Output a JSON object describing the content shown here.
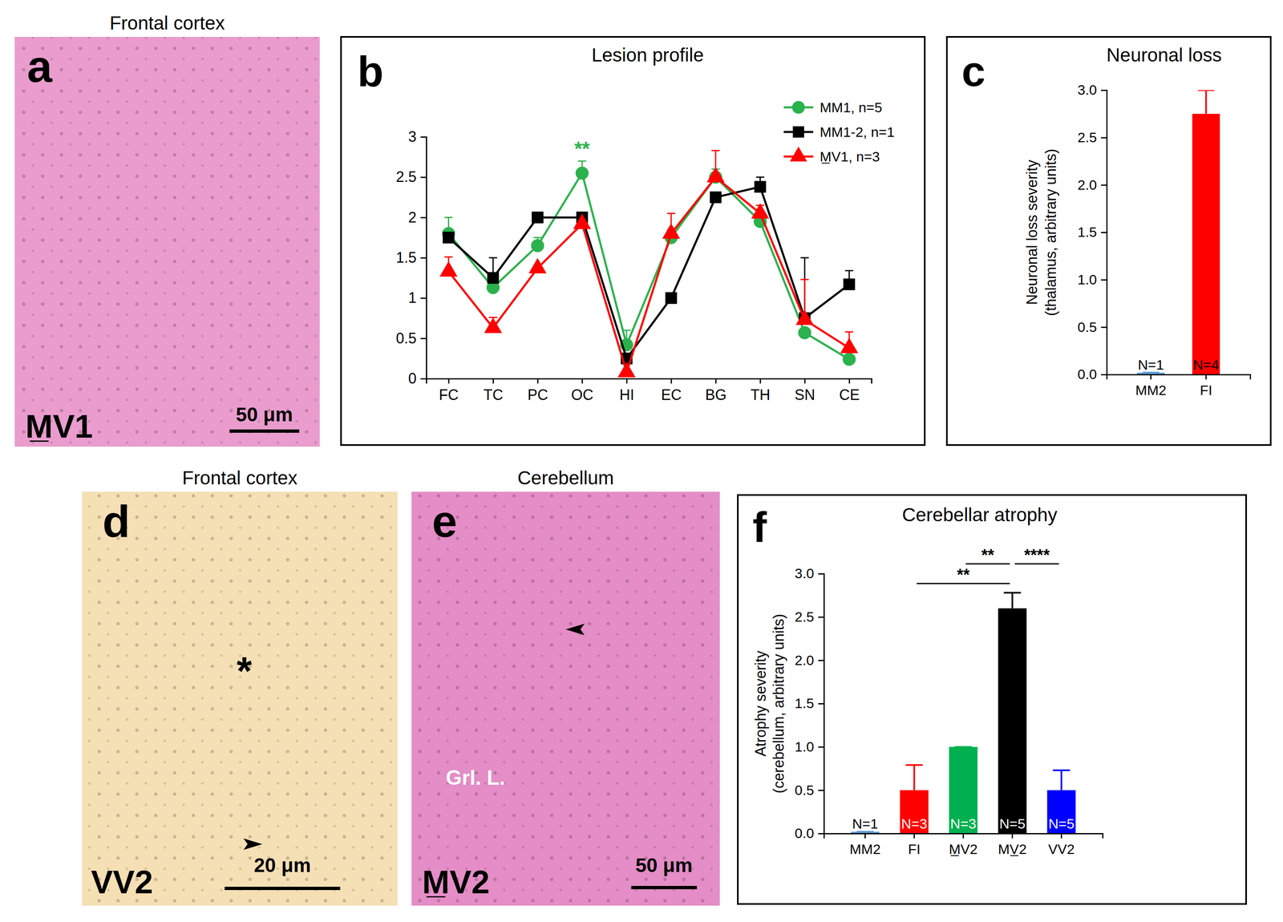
{
  "chart_data": [
    {
      "type": "line",
      "panel": "b",
      "title": "Lesion profile",
      "categories": [
        "FC",
        "TC",
        "PC",
        "OC",
        "HI",
        "EC",
        "BG",
        "TH",
        "SN",
        "CE"
      ],
      "ylim": [
        0,
        3
      ],
      "yticks": [
        0,
        0.5,
        1,
        1.5,
        2,
        2.5,
        3
      ],
      "legend": "top-right",
      "series": [
        {
          "name": "MM1, n=5",
          "color": "#2bb24c",
          "marker": "circle",
          "values": [
            1.8,
            1.13,
            1.65,
            2.55,
            0.42,
            1.75,
            2.5,
            1.95,
            0.57,
            0.24
          ],
          "errors": [
            0.2,
            0.15,
            0.1,
            0.15,
            0.18,
            0.1,
            0.1,
            0.05,
            0.05,
            0.05
          ]
        },
        {
          "name": "MM1-2, n=1",
          "color": "#000000",
          "marker": "square",
          "values": [
            1.75,
            1.25,
            2.0,
            2.0,
            0.25,
            1.0,
            2.25,
            2.38,
            0.75,
            1.17
          ],
          "errors": [
            0,
            0.25,
            0,
            0,
            0,
            0,
            0,
            0.12,
            0.75,
            0.17
          ]
        },
        {
          "name": "M̲V1, n=3",
          "color": "#ff0000",
          "marker": "triangle",
          "values": [
            1.33,
            0.63,
            1.37,
            1.92,
            0.08,
            1.8,
            2.5,
            2.05,
            0.73,
            0.38
          ],
          "errors": [
            0.18,
            0.13,
            0,
            0,
            0,
            0.25,
            0.33,
            0.1,
            0.5,
            0.2
          ]
        }
      ],
      "annotations": [
        {
          "series": 0,
          "index": 3,
          "label": "**"
        }
      ]
    },
    {
      "type": "bar",
      "panel": "c",
      "title": "Neuronal loss",
      "y_label": [
        "Neuronal loss severity",
        "(thalamus, arbitrary units)"
      ],
      "categories": [
        "MM2",
        "FI"
      ],
      "values": [
        0.02,
        2.75
      ],
      "errors": [
        0,
        0.25
      ],
      "colors": [
        "#5b9bd5",
        "#ff0000"
      ],
      "n_labels": [
        "N=1",
        "N=4"
      ],
      "ylim": [
        0,
        3
      ],
      "yticks": [
        {
          "value": 0,
          "label": "0.0"
        },
        {
          "value": 0.5,
          "label": "0.5"
        },
        {
          "value": 1,
          "label": "1.0"
        },
        {
          "value": 1.5,
          "label": "1.5"
        },
        {
          "value": 2,
          "label": "2.0"
        },
        {
          "value": 2.5,
          "label": "2.5"
        },
        {
          "value": 3,
          "label": "3.0"
        }
      ]
    },
    {
      "type": "bar",
      "panel": "f",
      "title": "Cerebellar atrophy",
      "y_label": [
        "Atrophy severity",
        "(cerebellum, arbitrary units)"
      ],
      "categories": [
        "MM2",
        "FI",
        "M̲V2",
        "MV̲2",
        "VV2"
      ],
      "values": [
        0.02,
        0.5,
        1.0,
        2.6,
        0.5
      ],
      "errors": [
        0,
        0.29,
        0,
        0.18,
        0.23
      ],
      "colors": [
        "#5b9bd5",
        "#ff0000",
        "#00b050",
        "#000000",
        "#0000ff"
      ],
      "n_labels": [
        "N=1",
        "N=3",
        "N=3",
        "N=5",
        "N=5"
      ],
      "ylim": [
        0,
        3
      ],
      "yticks": [
        {
          "value": 0,
          "label": "0.0"
        },
        {
          "value": 0.5,
          "label": "0.5"
        },
        {
          "value": 1,
          "label": "1.0"
        },
        {
          "value": 1.5,
          "label": "1.5"
        },
        {
          "value": 2,
          "label": "2.0"
        },
        {
          "value": 2.5,
          "label": "2.5"
        },
        {
          "value": 3,
          "label": "3.0"
        }
      ],
      "significance": [
        {
          "from": 1,
          "to": 3,
          "label": "**"
        },
        {
          "from": 2,
          "to": 3,
          "label": "**"
        },
        {
          "from": 3,
          "to": 4,
          "label": "****"
        }
      ]
    }
  ],
  "image_panels": [
    {
      "panel": "a",
      "title": "Frontal cortex",
      "label": "M̲V1",
      "scale_bar": "50 μm",
      "color": "#e99ccd"
    },
    {
      "panel": "d",
      "title": "Frontal cortex",
      "label": "VV2",
      "scale_bar": "20 μm",
      "color": "#f5dfb4",
      "annotations": [
        {
          "label": "*"
        }
      ]
    },
    {
      "panel": "e",
      "title": "Cerebellum",
      "label": "M̲V2",
      "scale_bar": "50 μm",
      "color": "#e48dc6",
      "annotations": [
        {
          "label": "Grl. L."
        }
      ]
    }
  ]
}
